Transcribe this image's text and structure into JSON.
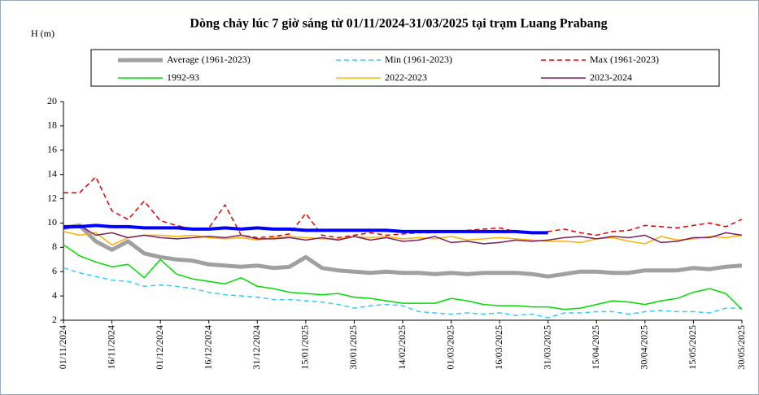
{
  "chart_data": {
    "type": "line",
    "title": "Dòng chảy lúc 7 giờ sáng từ 01/11/2024-31/03/2025 tại trạm Luang Prabang",
    "y_label": "H (m)",
    "categories": [
      "01/11/2024",
      null,
      null,
      "16/11/2024",
      null,
      null,
      "01/12/2024",
      null,
      null,
      "16/12/2024",
      null,
      null,
      "31/12/2024",
      null,
      null,
      "15/01/2025",
      null,
      null,
      "30/01/2025",
      null,
      null,
      "14/02/2025",
      null,
      null,
      "01/03/2025",
      null,
      null,
      "16/03/2025",
      null,
      null,
      "31/03/2025",
      null,
      null,
      "15/04/2025",
      null,
      null,
      "30/04/2025",
      null,
      null,
      "15/05/2025",
      null,
      null,
      "30/05/2025"
    ],
    "ylim": [
      2,
      20
    ],
    "yticks": [
      2,
      4,
      6,
      8,
      10,
      12,
      14,
      16,
      18,
      20
    ],
    "grid": false,
    "series": [
      {
        "name": "Average (1961-2023)",
        "color": "#a0a0a0",
        "width": 5,
        "dash": false,
        "values": [
          9.6,
          9.8,
          8.5,
          7.8,
          8.5,
          7.5,
          7.2,
          7.0,
          6.9,
          6.6,
          6.5,
          6.4,
          6.5,
          6.3,
          6.4,
          7.2,
          6.3,
          6.1,
          6.0,
          5.9,
          6.0,
          5.9,
          5.9,
          5.8,
          5.9,
          5.8,
          5.9,
          5.9,
          5.9,
          5.8,
          5.6,
          5.8,
          6.0,
          6.0,
          5.9,
          5.9,
          6.1,
          6.1,
          6.1,
          6.3,
          6.2,
          6.4,
          6.5
        ]
      },
      {
        "name": "Min (1961-2023)",
        "color": "#33ccff",
        "width": 1.5,
        "dash": true,
        "values": [
          6.3,
          5.9,
          5.6,
          5.3,
          5.2,
          4.8,
          4.9,
          4.8,
          4.6,
          4.3,
          4.1,
          4.0,
          3.9,
          3.7,
          3.7,
          3.6,
          3.5,
          3.3,
          3.0,
          3.2,
          3.3,
          3.2,
          2.7,
          2.6,
          2.5,
          2.6,
          2.5,
          2.6,
          2.4,
          2.5,
          2.2,
          2.6,
          2.6,
          2.7,
          2.7,
          2.5,
          2.7,
          2.8,
          2.7,
          2.7,
          2.6,
          3.0,
          3.0
        ]
      },
      {
        "name": "Max (1961-2023)",
        "color": "#e00000",
        "width": 1.5,
        "dash": true,
        "values": [
          12.5,
          12.5,
          13.8,
          11.0,
          10.3,
          11.8,
          10.2,
          9.8,
          9.5,
          9.6,
          11.5,
          9.0,
          8.8,
          8.9,
          9.1,
          10.8,
          9.0,
          8.8,
          9.0,
          9.2,
          9.0,
          9.1,
          9.2,
          9.2,
          9.3,
          9.4,
          9.5,
          9.6,
          9.3,
          9.2,
          9.3,
          9.5,
          9.2,
          9.0,
          9.3,
          9.4,
          9.8,
          9.7,
          9.6,
          9.8,
          10.0,
          9.7,
          10.3
        ]
      },
      {
        "name": "1992-93",
        "color": "#00dd00",
        "width": 1.5,
        "dash": false,
        "values": [
          8.2,
          7.3,
          6.8,
          6.4,
          6.6,
          5.5,
          7.0,
          5.8,
          5.4,
          5.2,
          5.0,
          5.5,
          4.8,
          4.6,
          4.3,
          4.2,
          4.1,
          4.2,
          3.9,
          3.8,
          3.6,
          3.4,
          3.4,
          3.4,
          3.8,
          3.6,
          3.3,
          3.2,
          3.2,
          3.1,
          3.1,
          2.9,
          3.0,
          3.3,
          3.6,
          3.5,
          3.3,
          3.6,
          3.8,
          4.3,
          4.6,
          4.2,
          2.9
        ]
      },
      {
        "name": "2022-2023",
        "color": "#ffb000",
        "width": 1.5,
        "dash": false,
        "values": [
          9.3,
          9.0,
          9.2,
          8.2,
          8.8,
          9.0,
          9.0,
          8.9,
          9.0,
          8.8,
          8.7,
          8.8,
          8.6,
          8.8,
          8.9,
          8.8,
          8.7,
          8.7,
          8.9,
          8.8,
          8.9,
          8.7,
          8.8,
          8.7,
          8.9,
          8.6,
          8.7,
          8.8,
          8.7,
          8.6,
          8.5,
          8.5,
          8.4,
          8.7,
          8.8,
          8.5,
          8.3,
          8.9,
          8.6,
          8.7,
          8.9,
          8.8,
          9.0
        ]
      },
      {
        "name": "2023-2024",
        "color": "#7a2060",
        "width": 1.5,
        "dash": false,
        "values": [
          9.5,
          9.8,
          9.0,
          9.2,
          8.8,
          9.0,
          8.8,
          8.7,
          8.8,
          8.9,
          8.8,
          9.0,
          8.7,
          8.7,
          8.8,
          8.6,
          8.8,
          8.6,
          8.9,
          8.6,
          8.8,
          8.5,
          8.6,
          8.9,
          8.4,
          8.5,
          8.3,
          8.4,
          8.6,
          8.5,
          8.6,
          8.8,
          8.9,
          8.7,
          8.9,
          8.8,
          9.0,
          8.4,
          8.5,
          8.8,
          8.8,
          9.2,
          9.0
        ]
      },
      {
        "color": "#0000ff",
        "width": 4,
        "dash": false,
        "values": [
          9.7,
          9.7,
          9.8,
          9.7,
          9.7,
          9.6,
          9.6,
          9.6,
          9.5,
          9.5,
          9.6,
          9.5,
          9.6,
          9.5,
          9.5,
          9.4,
          9.4,
          9.4,
          9.4,
          9.4,
          9.4,
          9.3,
          9.3,
          9.3,
          9.3,
          9.3,
          9.3,
          9.3,
          9.3,
          9.2,
          9.2,
          null,
          null,
          null,
          null,
          null,
          null,
          null,
          null,
          null,
          null,
          null,
          null
        ]
      }
    ]
  }
}
